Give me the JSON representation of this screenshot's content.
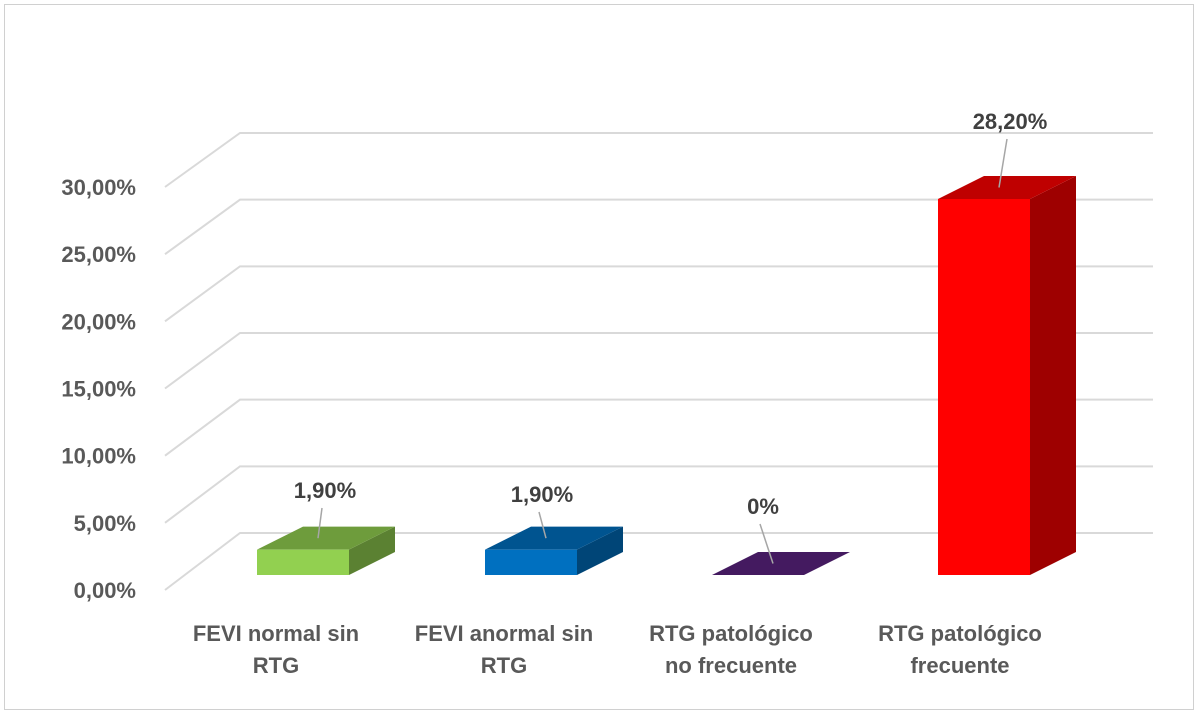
{
  "chart_data": {
    "type": "bar",
    "style": "3d-clustered-column",
    "categories": [
      [
        "FEVI normal sin",
        "RTG"
      ],
      [
        "FEVI anormal sin",
        "RTG"
      ],
      [
        "RTG patológico",
        "no frecuente"
      ],
      [
        "RTG patológico",
        "frecuente"
      ]
    ],
    "values": [
      1.9,
      1.9,
      0,
      28.2
    ],
    "data_labels": [
      "1,90%",
      "1,90%",
      "0%",
      "28,20%"
    ],
    "colors": [
      "#92d050",
      "#0070c0",
      "#5b2280",
      "#ff0000"
    ],
    "ylim": [
      0,
      30
    ],
    "yticks": [
      "0,00%",
      "5,00%",
      "10,00%",
      "15,00%",
      "20,00%",
      "25,00%",
      "30,00%"
    ],
    "grid": true,
    "legend": "none",
    "title": "",
    "xlabel": "",
    "ylabel": ""
  }
}
